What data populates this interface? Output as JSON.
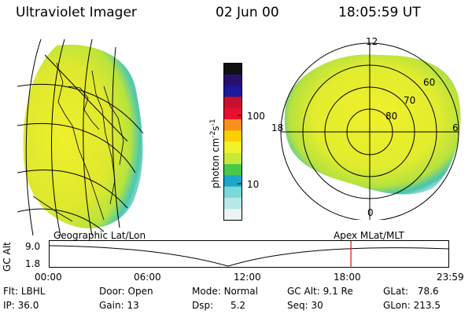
{
  "header": {
    "title": "Ultraviolet Imager",
    "date": "02 Jun 00",
    "time": "18:05:59 UT"
  },
  "colorbar": {
    "unit": "photon cm",
    "unit_sup1": "-2",
    "unit_mid": "s",
    "unit_sup2": "-1",
    "ticks": [
      "100",
      "10"
    ],
    "colors": [
      "#101010",
      "#2a0f6e",
      "#1a1a9a",
      "#c8102e",
      "#e8102e",
      "#f7901e",
      "#fbd000",
      "#f2f22a",
      "#c8e83a",
      "#4ac84a",
      "#1aa8c8",
      "#7ad8d8",
      "#b8e8e8",
      "#eaf4f4"
    ]
  },
  "left_panel": {
    "caption": "Geographic Lat/Lon"
  },
  "polar_plot": {
    "caption": "Apex MLat/MLT",
    "mlt_labels": [
      "12",
      "18",
      "6",
      "0"
    ],
    "lat_labels": [
      "60",
      "70",
      "80"
    ]
  },
  "timeline": {
    "ylabel": "GC Alt",
    "yticks": [
      "9.0",
      "1.8"
    ],
    "xticks": [
      "00:00",
      "06:00",
      "12:00",
      "18:00",
      "23:59"
    ],
    "current_time": "18:05:59",
    "marker_color": "#e0201a"
  },
  "info": {
    "flt_label": "Flt:",
    "flt_value": "LBHL",
    "ip_label": "IP:",
    "ip_value": "36.0",
    "door_label": "Door:",
    "door_value": "Open",
    "gain_label": "Gain:",
    "gain_value": "13",
    "mode_label": "Mode:",
    "mode_value": "Normal",
    "dsp_label": "Dsp:",
    "dsp_value": "5.2",
    "gcalt_label": "GC Alt:",
    "gcalt_value": "9.1 Re",
    "seq_label": "Seq:",
    "seq_value": "30",
    "glat_label": "GLat:",
    "glat_value": "78.6",
    "glon_label": "GLon:",
    "glon_value": "213.5"
  }
}
